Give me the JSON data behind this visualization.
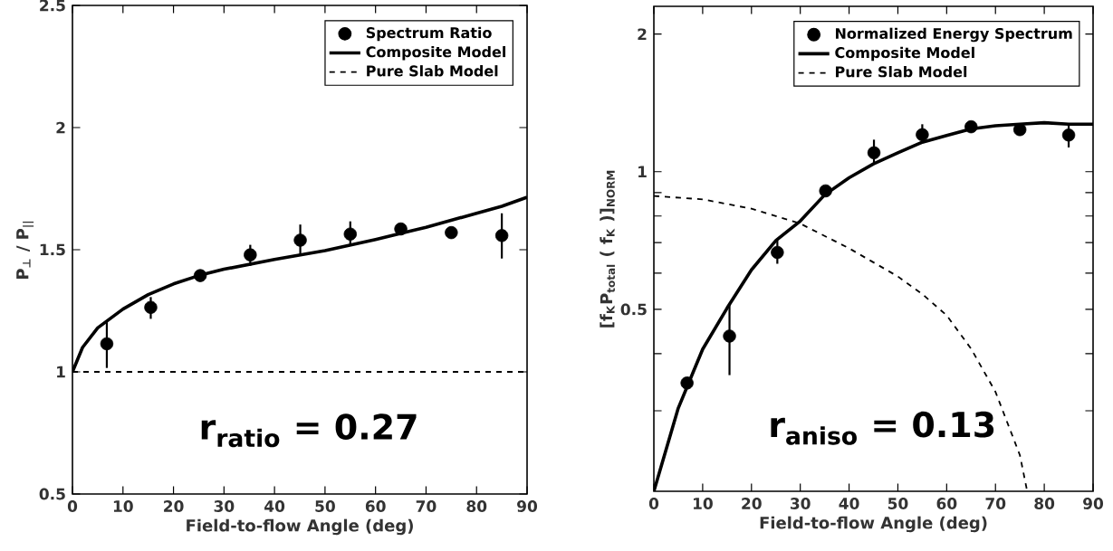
{
  "chart_data": [
    {
      "type": "line",
      "xlabel": "Field-to-flow Angle (deg)",
      "ylabel": "P$_{⊥}$ / P$_{||}$",
      "xlim": [
        0,
        90
      ],
      "xticks": [
        0,
        10,
        20,
        30,
        40,
        50,
        60,
        70,
        80,
        90
      ],
      "ylim": [
        0.5,
        2.5
      ],
      "yticks": [
        0.5,
        1,
        1.5,
        2,
        2.5
      ],
      "legend": "top right",
      "grid": false,
      "annotations": [
        "r$_{ratio}$ = 0.27"
      ],
      "series": [
        {
          "name": "Spectrum Ratio",
          "type": "scatter",
          "marker": "circle",
          "color": "#000000",
          "x": [
            6.8,
            15.5,
            25.3,
            35.2,
            45.1,
            55,
            65,
            75,
            85
          ],
          "values": [
            1.115,
            1.264,
            1.394,
            1.479,
            1.539,
            1.564,
            1.585,
            1.57,
            1.558
          ],
          "errors": [
            [
              1.016,
              1.205
            ],
            [
              1.217,
              1.306
            ],
            null,
            [
              1.434,
              1.52
            ],
            [
              1.482,
              1.603
            ],
            [
              1.516,
              1.616
            ],
            [
              1.563,
              1.607
            ],
            null,
            [
              1.464,
              1.649
            ]
          ]
        },
        {
          "name": "Composite Model",
          "line_style": "solid",
          "color": "#000000",
          "x": [
            0,
            2,
            5,
            10,
            15,
            20,
            25,
            30,
            40,
            50,
            60,
            70,
            80,
            85,
            90
          ],
          "values": [
            1.0,
            1.1,
            1.18,
            1.257,
            1.316,
            1.36,
            1.394,
            1.42,
            1.46,
            1.496,
            1.542,
            1.592,
            1.649,
            1.678,
            1.715
          ]
        },
        {
          "name": "Pure Slab Model",
          "line_style": "dashed",
          "color": "#000000",
          "x": [
            0,
            90
          ],
          "values": [
            1,
            1
          ]
        }
      ]
    },
    {
      "type": "line",
      "xlabel": "Field-to-flow Angle (deg)",
      "ylabel": "[f$_{K}$P$_{total}$ ( f$_{K}$ )]$_{NORM}$",
      "xlim": [
        0,
        90
      ],
      "xticks": [
        0,
        10,
        20,
        30,
        40,
        50,
        60,
        70,
        80,
        90
      ],
      "ylim": [
        0.2,
        2.3
      ],
      "log": true,
      "yticks": [
        {
          "value": 0.3,
          "label": null
        },
        {
          "value": 0.4,
          "label": null
        },
        0.5,
        {
          "value": 0.6,
          "label": null
        },
        {
          "value": 0.7,
          "label": null
        },
        {
          "value": 0.8,
          "label": null
        },
        {
          "value": 0.9,
          "label": null
        },
        1,
        2
      ],
      "legend": "top right",
      "grid": false,
      "annotations": [
        "r$_{aniso}$ = 0.13"
      ],
      "series": [
        {
          "name": "Normalized Energy Spectrum",
          "type": "scatter",
          "marker": "circle",
          "color": "#000000",
          "x": [
            6.8,
            15.5,
            25.3,
            35.2,
            45.1,
            55,
            65,
            75,
            85
          ],
          "values": [
            0.345,
            0.437,
            0.666,
            0.908,
            1.1,
            1.205,
            1.254,
            1.236,
            1.203
          ],
          "errors": [
            null,
            [
              0.359,
              0.513
            ],
            [
              0.629,
              0.707
            ],
            null,
            [
              1.04,
              1.175
            ],
            [
              1.16,
              1.27
            ],
            null,
            null,
            [
              1.13,
              1.27
            ]
          ]
        },
        {
          "name": "Composite Model",
          "line_style": "solid",
          "color": "#000000",
          "x": [
            0,
            5,
            10,
            15,
            20,
            25,
            30,
            35,
            40,
            45,
            50,
            55,
            60,
            65,
            70,
            75,
            80,
            85,
            90
          ],
          "values": [
            0.2,
            0.304,
            0.409,
            0.503,
            0.61,
            0.707,
            0.78,
            0.89,
            0.97,
            1.04,
            1.1,
            1.16,
            1.2,
            1.24,
            1.26,
            1.27,
            1.28,
            1.27,
            1.27
          ]
        },
        {
          "name": "Pure Slab Model",
          "line_style": "dashed",
          "color": "#000000",
          "x": [
            0,
            10,
            20,
            30,
            40,
            50,
            55,
            60,
            65,
            70,
            75,
            76.5
          ],
          "values": [
            0.885,
            0.87,
            0.83,
            0.77,
            0.68,
            0.59,
            0.54,
            0.485,
            0.41,
            0.33,
            0.24,
            0.2
          ]
        }
      ]
    }
  ]
}
